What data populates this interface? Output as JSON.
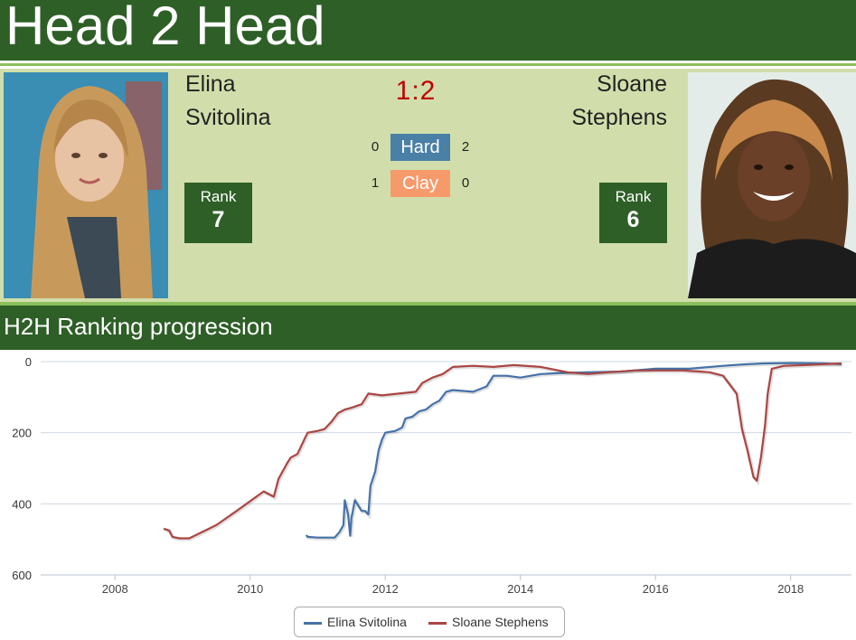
{
  "header": {
    "title": "Head 2 Head"
  },
  "matchup": {
    "player1": {
      "first": "Elina",
      "last": "Svitolina",
      "rank_label": "Rank",
      "rank": "7"
    },
    "player2": {
      "first": "Sloane",
      "last": "Stephens",
      "rank_label": "Rank",
      "rank": "6"
    },
    "score": "1:2",
    "surfaces": [
      {
        "label": "Hard",
        "p1": "0",
        "p2": "2",
        "color": "#4a7fa6"
      },
      {
        "label": "Clay",
        "p1": "1",
        "p2": "0",
        "color": "#f79a6b"
      }
    ]
  },
  "section": {
    "title": "H2H Ranking progression"
  },
  "chart_data": {
    "type": "line",
    "title": "",
    "xlabel": "",
    "ylabel": "",
    "xlim": [
      2006.9,
      2018.9
    ],
    "ylim": [
      0,
      600
    ],
    "y_reversed": true,
    "grid": true,
    "legend_position": "bottom-center",
    "x_ticks": [
      "2008",
      "2010",
      "2012",
      "2014",
      "2016",
      "2018"
    ],
    "y_ticks": [
      "0",
      "200",
      "400",
      "600"
    ],
    "series": [
      {
        "name": "Elina Svitolina",
        "color": "#4572a7",
        "points": [
          [
            2010.83,
            488
          ],
          [
            2010.85,
            493
          ],
          [
            2011.0,
            495
          ],
          [
            2011.25,
            495
          ],
          [
            2011.32,
            480
          ],
          [
            2011.38,
            460
          ],
          [
            2011.4,
            390
          ],
          [
            2011.45,
            430
          ],
          [
            2011.48,
            490
          ],
          [
            2011.5,
            440
          ],
          [
            2011.55,
            390
          ],
          [
            2011.65,
            420
          ],
          [
            2011.7,
            420
          ],
          [
            2011.75,
            430
          ],
          [
            2011.78,
            350
          ],
          [
            2011.85,
            310
          ],
          [
            2011.9,
            250
          ],
          [
            2011.95,
            220
          ],
          [
            2012.0,
            200
          ],
          [
            2012.15,
            195
          ],
          [
            2012.25,
            185
          ],
          [
            2012.3,
            160
          ],
          [
            2012.4,
            155
          ],
          [
            2012.5,
            140
          ],
          [
            2012.6,
            135
          ],
          [
            2012.7,
            120
          ],
          [
            2012.8,
            110
          ],
          [
            2012.9,
            85
          ],
          [
            2013.0,
            80
          ],
          [
            2013.3,
            85
          ],
          [
            2013.5,
            70
          ],
          [
            2013.6,
            40
          ],
          [
            2013.8,
            40
          ],
          [
            2014.0,
            45
          ],
          [
            2014.3,
            35
          ],
          [
            2014.6,
            32
          ],
          [
            2015.0,
            30
          ],
          [
            2015.5,
            28
          ],
          [
            2016.0,
            20
          ],
          [
            2016.5,
            20
          ],
          [
            2017.0,
            12
          ],
          [
            2017.3,
            8
          ],
          [
            2017.6,
            5
          ],
          [
            2018.0,
            4
          ],
          [
            2018.5,
            5
          ],
          [
            2018.75,
            7
          ]
        ]
      },
      {
        "name": "Sloane Stephens",
        "color": "#aa4643",
        "points": [
          [
            2008.72,
            470
          ],
          [
            2008.8,
            475
          ],
          [
            2008.85,
            493
          ],
          [
            2008.95,
            497
          ],
          [
            2009.1,
            497
          ],
          [
            2009.5,
            460
          ],
          [
            2009.8,
            420
          ],
          [
            2010.2,
            365
          ],
          [
            2010.3,
            375
          ],
          [
            2010.35,
            380
          ],
          [
            2010.42,
            330
          ],
          [
            2010.55,
            285
          ],
          [
            2010.6,
            270
          ],
          [
            2010.7,
            260
          ],
          [
            2010.75,
            240
          ],
          [
            2010.8,
            220
          ],
          [
            2010.85,
            200
          ],
          [
            2011.0,
            195
          ],
          [
            2011.1,
            190
          ],
          [
            2011.2,
            170
          ],
          [
            2011.3,
            145
          ],
          [
            2011.4,
            135
          ],
          [
            2011.5,
            130
          ],
          [
            2011.65,
            120
          ],
          [
            2011.75,
            90
          ],
          [
            2011.95,
            95
          ],
          [
            2012.2,
            90
          ],
          [
            2012.45,
            85
          ],
          [
            2012.55,
            60
          ],
          [
            2012.7,
            45
          ],
          [
            2012.85,
            35
          ],
          [
            2013.0,
            15
          ],
          [
            2013.3,
            12
          ],
          [
            2013.6,
            15
          ],
          [
            2013.9,
            10
          ],
          [
            2014.3,
            15
          ],
          [
            2014.7,
            30
          ],
          [
            2015.0,
            35
          ],
          [
            2015.3,
            30
          ],
          [
            2015.7,
            25
          ],
          [
            2016.0,
            25
          ],
          [
            2016.4,
            25
          ],
          [
            2016.8,
            30
          ],
          [
            2017.0,
            40
          ],
          [
            2017.2,
            90
          ],
          [
            2017.28,
            190
          ],
          [
            2017.36,
            250
          ],
          [
            2017.45,
            325
          ],
          [
            2017.5,
            335
          ],
          [
            2017.56,
            270
          ],
          [
            2017.62,
            180
          ],
          [
            2017.66,
            90
          ],
          [
            2017.72,
            20
          ],
          [
            2017.9,
            12
          ],
          [
            2018.2,
            10
          ],
          [
            2018.5,
            7
          ],
          [
            2018.75,
            5
          ]
        ]
      }
    ]
  }
}
